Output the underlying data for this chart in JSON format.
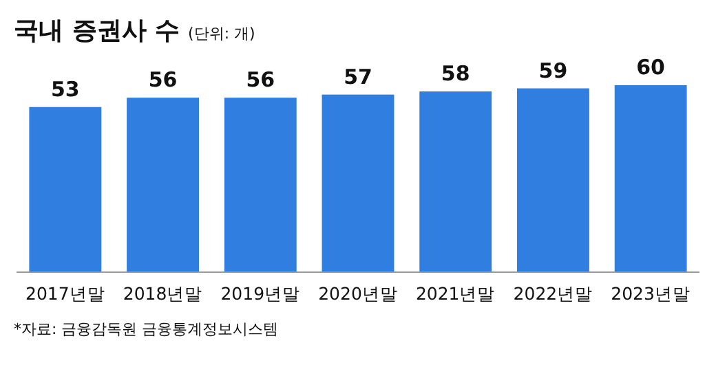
{
  "chart_data": {
    "type": "bar",
    "title": "국내 증권사 수",
    "subtitle": "(단위: 개)",
    "categories": [
      "2017년말",
      "2018년말",
      "2019년말",
      "2020년말",
      "2021년말",
      "2022년말",
      "2023년말"
    ],
    "values": [
      53,
      56,
      56,
      57,
      58,
      59,
      60
    ],
    "color": "#2f7ee0",
    "data_labels": true,
    "annotations": [
      "*자료: 금융감독원 금융통계정보시스템"
    ]
  }
}
